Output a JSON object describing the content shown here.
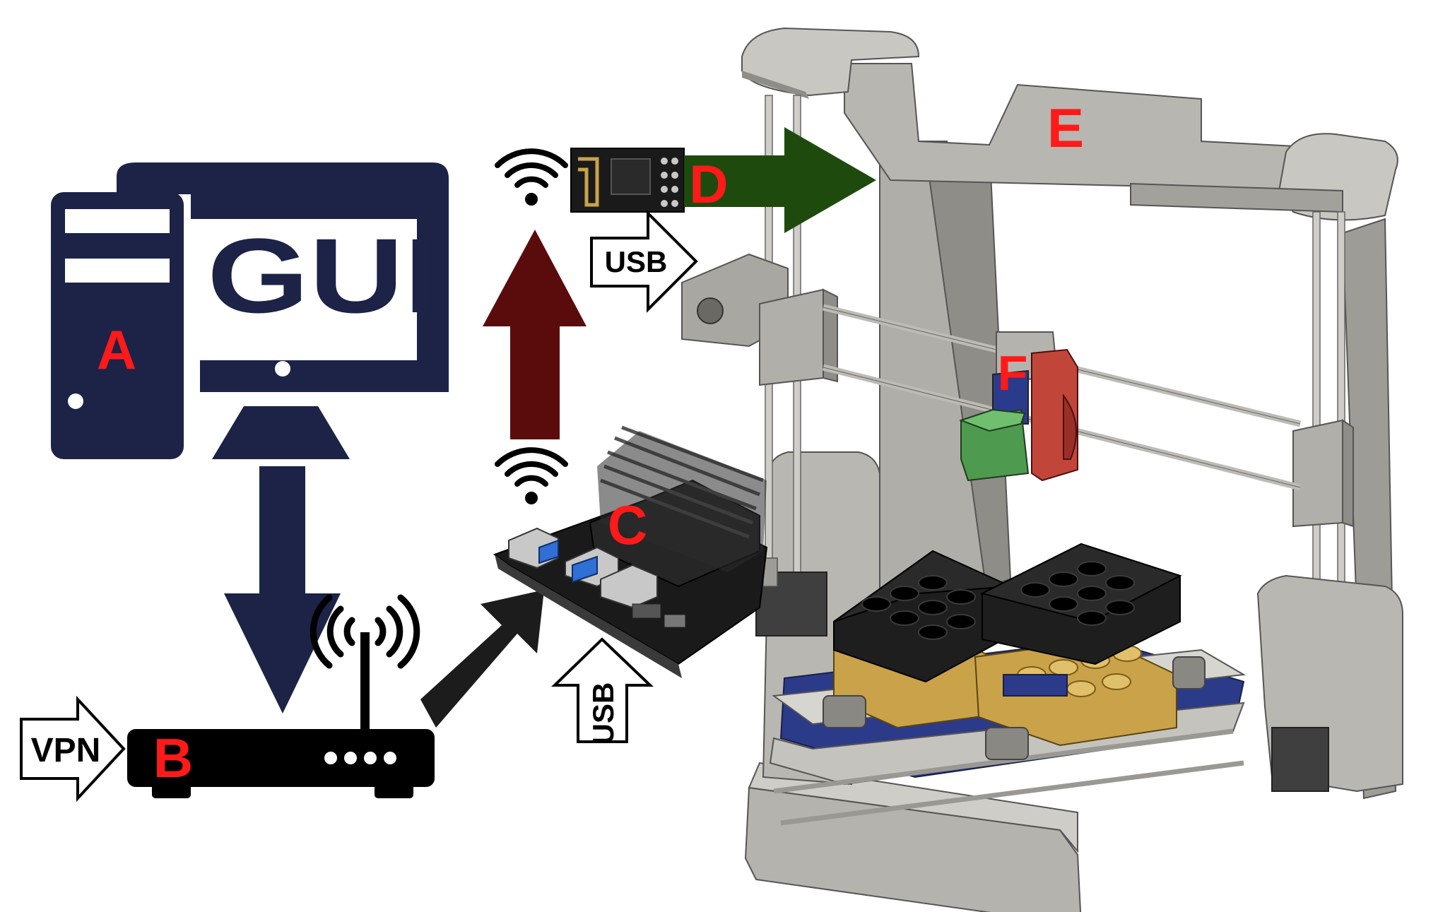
{
  "labels": {
    "a": "A",
    "b": "B",
    "c": "C",
    "d": "D",
    "e": "E",
    "f": "F"
  },
  "gui_text": "GUI",
  "usb_top": "USB",
  "usb_bottom": "USB",
  "vpn": "VPN",
  "colors": {
    "navy": "#1c2347",
    "label_red": "#ff1a1a",
    "maroon": "#5a0c0c",
    "dark_green": "#1f4a0e",
    "frame_gray": "#a8a6a0",
    "bed_blue": "#2c3a8a",
    "tray_gold": "#c9a24a",
    "tray_black": "#1e1e1e",
    "extruder_red": "#c2453a",
    "cup_green": "#4e9a4e"
  },
  "icons": [
    "desktop-computer-icon",
    "router-icon",
    "wifi-icon",
    "jetson-board-image",
    "esp-module-image",
    "3d-printer-image"
  ]
}
